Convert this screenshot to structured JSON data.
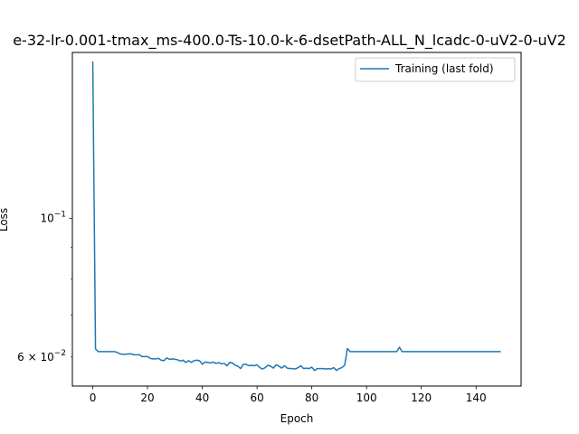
{
  "chart_data": {
    "type": "line",
    "title": "e-32-lr-0.001-tmax_ms-400.0-Ts-10.0-k-6-dsetPath-ALL_N_lcadc-0-uV2-0-uV2",
    "xlabel": "Epoch",
    "ylabel": "Loss",
    "xlim": [
      -7.45,
      156.45
    ],
    "ylim": [
      0.0539,
      0.1845
    ],
    "y_scale": "log",
    "grid": false,
    "legend_position": "top-right",
    "x_ticks": [
      0,
      20,
      40,
      60,
      80,
      100,
      120,
      140
    ],
    "x_tick_labels": [
      "0",
      "20",
      "40",
      "60",
      "80",
      "100",
      "120",
      "140"
    ],
    "y_major_ticks": [
      0.1
    ],
    "y_minor_ticks": [
      0.06,
      0.07,
      0.08,
      0.09
    ],
    "y_tick_labels": [
      {
        "value": 0.1,
        "base": "10",
        "exp": "−1",
        "prefix": ""
      },
      {
        "value": 0.06,
        "base": "10",
        "exp": "−2",
        "prefix": "6 × "
      }
    ],
    "series": [
      {
        "name": "Training (last fold)",
        "color": "#1f77b4",
        "x": [
          0,
          1,
          2,
          3,
          4,
          5,
          6,
          7,
          8,
          9,
          10,
          11,
          12,
          13,
          14,
          15,
          16,
          17,
          18,
          19,
          20,
          21,
          22,
          23,
          24,
          25,
          26,
          27,
          28,
          29,
          30,
          31,
          32,
          33,
          34,
          35,
          36,
          37,
          38,
          39,
          40,
          41,
          42,
          43,
          44,
          45,
          46,
          47,
          48,
          49,
          50,
          51,
          52,
          53,
          54,
          55,
          56,
          57,
          58,
          59,
          60,
          61,
          62,
          63,
          64,
          65,
          66,
          67,
          68,
          69,
          70,
          71,
          72,
          73,
          74,
          75,
          76,
          77,
          78,
          79,
          80,
          81,
          82,
          83,
          84,
          85,
          86,
          87,
          88,
          89,
          90,
          91,
          92,
          93,
          94,
          95,
          96,
          97,
          98,
          99,
          100,
          101,
          102,
          103,
          104,
          105,
          106,
          107,
          108,
          109,
          110,
          111,
          112,
          113,
          114,
          115,
          116,
          117,
          118,
          119,
          120,
          121,
          122,
          123,
          124,
          125,
          126,
          127,
          128,
          129,
          130,
          131,
          132,
          133,
          134,
          135,
          136,
          137,
          138,
          139,
          140,
          141,
          142,
          143,
          144,
          145,
          146,
          147,
          148,
          149
        ],
        "y": [
          0.1785,
          0.0618,
          0.0612,
          0.0612,
          0.0612,
          0.0612,
          0.0612,
          0.0612,
          0.0612,
          0.061,
          0.0607,
          0.0606,
          0.0606,
          0.0607,
          0.0607,
          0.0605,
          0.0605,
          0.0605,
          0.0601,
          0.0601,
          0.0601,
          0.0597,
          0.0596,
          0.0596,
          0.0597,
          0.0593,
          0.0592,
          0.0598,
          0.0595,
          0.0596,
          0.0595,
          0.0594,
          0.0591,
          0.0593,
          0.0588,
          0.0592,
          0.0588,
          0.0592,
          0.0593,
          0.0592,
          0.0584,
          0.0589,
          0.0588,
          0.0587,
          0.0589,
          0.0586,
          0.0588,
          0.0585,
          0.0586,
          0.0581,
          0.0588,
          0.0587,
          0.0582,
          0.058,
          0.0575,
          0.0584,
          0.0584,
          0.0581,
          0.0582,
          0.0581,
          0.0583,
          0.0577,
          0.0574,
          0.0577,
          0.0582,
          0.058,
          0.0576,
          0.0583,
          0.058,
          0.0576,
          0.0581,
          0.0576,
          0.0575,
          0.0575,
          0.0574,
          0.0577,
          0.0581,
          0.0575,
          0.0576,
          0.0575,
          0.0578,
          0.0571,
          0.0575,
          0.0575,
          0.0575,
          0.0574,
          0.0575,
          0.0574,
          0.0577,
          0.0571,
          0.0575,
          0.0577,
          0.0582,
          0.0619,
          0.0612,
          0.0612,
          0.0612,
          0.0612,
          0.0612,
          0.0612,
          0.0612,
          0.0612,
          0.0612,
          0.0612,
          0.0612,
          0.0612,
          0.0612,
          0.0612,
          0.0612,
          0.0612,
          0.0612,
          0.0612,
          0.0622,
          0.0612,
          0.0612,
          0.0612,
          0.0612,
          0.0612,
          0.0612,
          0.0612,
          0.0612,
          0.0612,
          0.0612,
          0.0612,
          0.0612,
          0.0612,
          0.0612,
          0.0612,
          0.0612,
          0.0612,
          0.0612,
          0.0612,
          0.0612,
          0.0612,
          0.0612,
          0.0612,
          0.0612,
          0.0612,
          0.0612,
          0.0612,
          0.0612,
          0.0612,
          0.0612,
          0.0612,
          0.0612,
          0.0612,
          0.0612,
          0.0612,
          0.0612,
          0.0612
        ]
      }
    ]
  }
}
